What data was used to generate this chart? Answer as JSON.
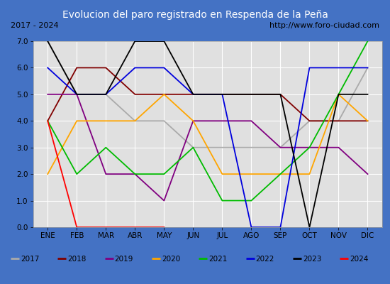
{
  "title": "Evolucion del paro registrado en Respenda de la Peña",
  "subtitle_left": "2017 - 2024",
  "subtitle_right": "http://www.foro-ciudad.com",
  "months": [
    "ENE",
    "FEB",
    "MAR",
    "ABR",
    "MAY",
    "JUN",
    "JUL",
    "AGO",
    "SEP",
    "OCT",
    "NOV",
    "DIC"
  ],
  "ylim": [
    0.0,
    7.0
  ],
  "yticks": [
    0.0,
    1.0,
    2.0,
    3.0,
    4.0,
    5.0,
    6.0,
    7.0
  ],
  "series": {
    "2017": {
      "color": "#aaaaaa",
      "data": [
        7.0,
        5.0,
        5.0,
        4.0,
        4.0,
        3.0,
        3.0,
        3.0,
        3.0,
        4.0,
        4.0,
        6.0
      ]
    },
    "2018": {
      "color": "#800000",
      "data": [
        4.0,
        6.0,
        6.0,
        5.0,
        5.0,
        5.0,
        5.0,
        5.0,
        5.0,
        4.0,
        4.0,
        4.0
      ]
    },
    "2019": {
      "color": "#800080",
      "data": [
        5.0,
        5.0,
        2.0,
        2.0,
        1.0,
        4.0,
        4.0,
        4.0,
        3.0,
        3.0,
        3.0,
        2.0
      ]
    },
    "2020": {
      "color": "#ffa500",
      "data": [
        2.0,
        4.0,
        4.0,
        4.0,
        5.0,
        4.0,
        2.0,
        2.0,
        2.0,
        2.0,
        5.0,
        4.0
      ]
    },
    "2021": {
      "color": "#00bb00",
      "data": [
        4.0,
        2.0,
        3.0,
        2.0,
        2.0,
        3.0,
        1.0,
        1.0,
        2.0,
        3.0,
        5.0,
        7.0
      ]
    },
    "2022": {
      "color": "#0000dd",
      "data": [
        6.0,
        5.0,
        5.0,
        6.0,
        6.0,
        5.0,
        5.0,
        0.0,
        0.0,
        6.0,
        6.0,
        6.0
      ]
    },
    "2023": {
      "color": "#000000",
      "data": [
        7.0,
        5.0,
        5.0,
        7.0,
        7.0,
        5.0,
        5.0,
        5.0,
        5.0,
        0.0,
        5.0,
        5.0
      ]
    },
    "2024": {
      "color": "#ff0000",
      "data": [
        4.0,
        0.0,
        0.0,
        0.0,
        0.0,
        null,
        null,
        null,
        null,
        null,
        null,
        null
      ]
    }
  },
  "legend_items": [
    [
      "2017",
      "#aaaaaa"
    ],
    [
      "2018",
      "#800000"
    ],
    [
      "2019",
      "#800080"
    ],
    [
      "2020",
      "#ffa500"
    ],
    [
      "2021",
      "#00bb00"
    ],
    [
      "2022",
      "#0000dd"
    ],
    [
      "2023",
      "#000000"
    ],
    [
      "2024",
      "#ff0000"
    ]
  ],
  "title_bg": "#4472c4",
  "title_color": "white",
  "title_fontsize": 10,
  "subtitle_fontsize": 8,
  "plot_bg": "#e0e0e0",
  "grid_color": "white",
  "legend_bg": "#d0d0d0"
}
